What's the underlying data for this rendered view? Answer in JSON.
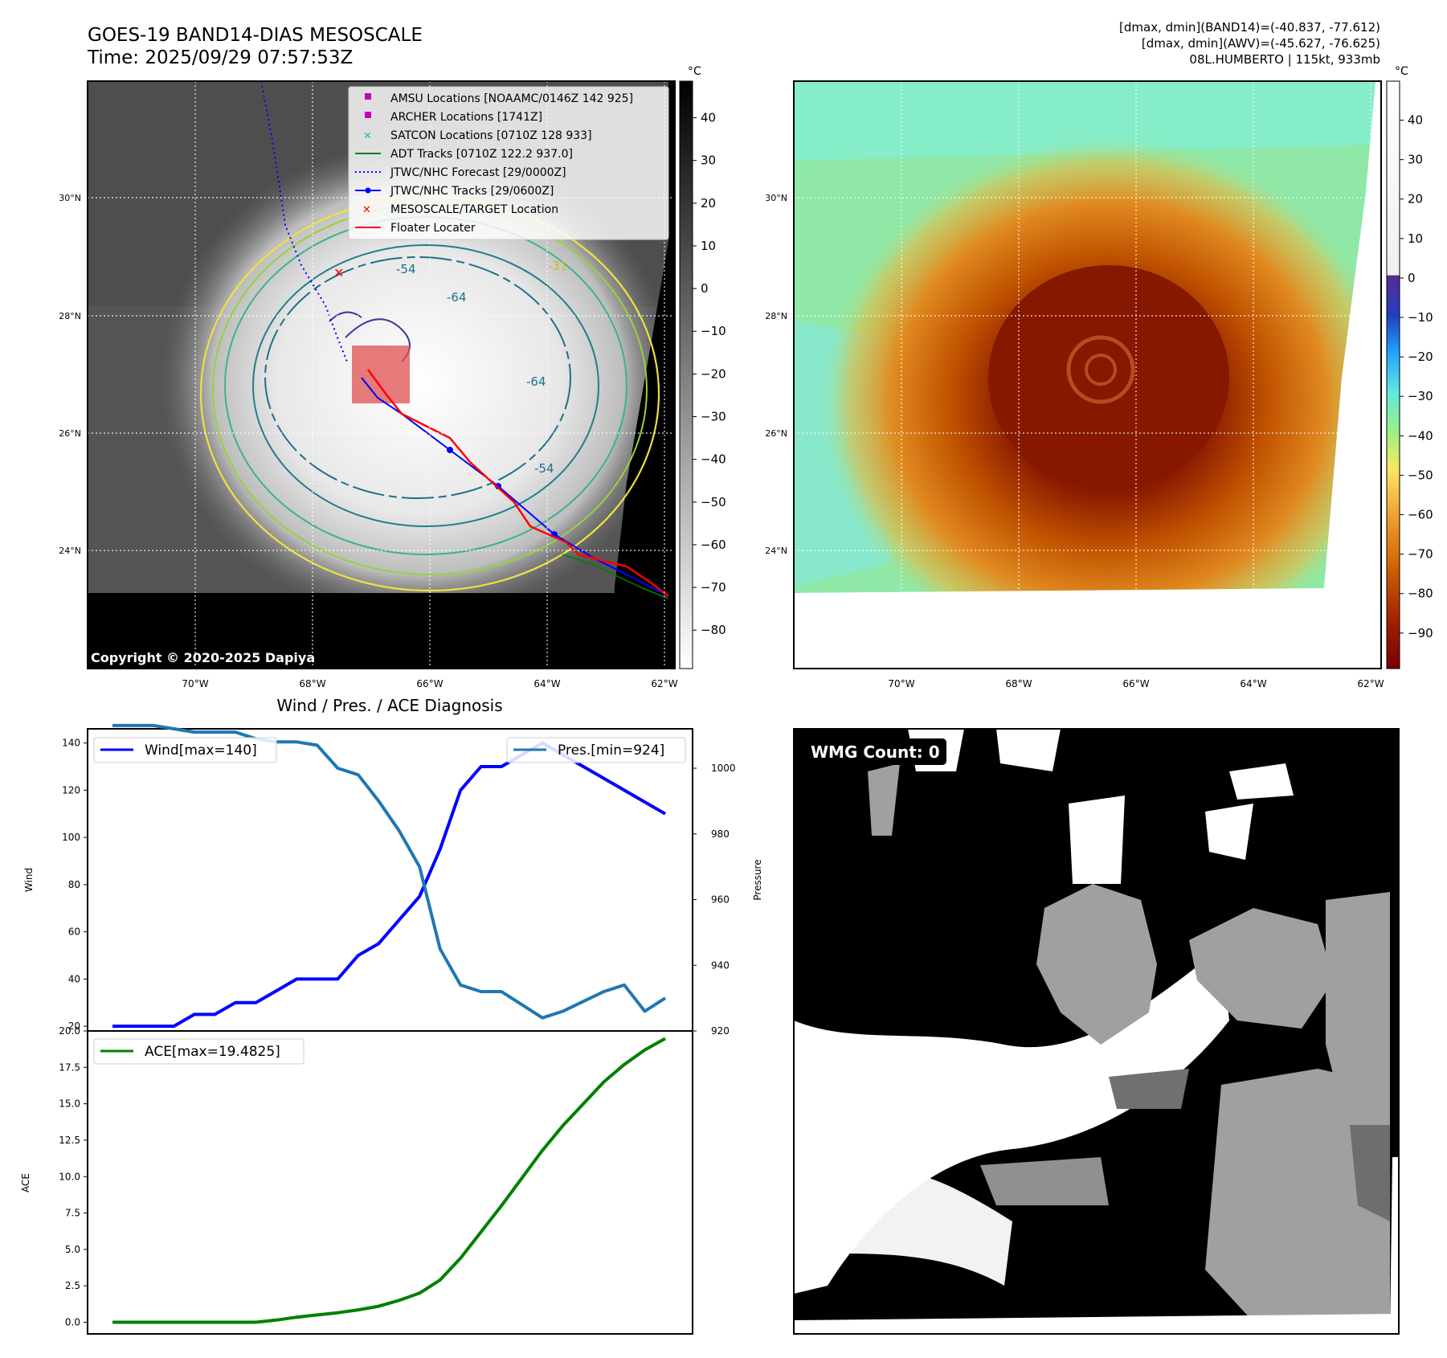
{
  "header": {
    "title_line1": "GOES-19 BAND14-DIAS MESOSCALE",
    "title_line2": "Time: 2025/09/29 07:57:53Z",
    "stats_line1": "[dmax, dmin](BAND14)=(-40.837, -77.612)",
    "stats_line2": "[dmax, dmin](AWV)=(-45.627, -76.625)",
    "stats_line3": "08L.HUMBERTO | 115kt, 933mb"
  },
  "map_axes": {
    "lon_ticks": [
      "70°W",
      "68°W",
      "66°W",
      "64°W",
      "62°W"
    ],
    "lat_ticks": [
      "30°N",
      "28°N",
      "26°N",
      "24°N"
    ]
  },
  "ir_panel": {
    "copyright": "Copyright © 2020-2025 Dapiya",
    "contour_labels": [
      "-54",
      "-64",
      "-64",
      "-54",
      "-31"
    ],
    "legend": [
      {
        "label": "AMSU Locations [NOAAMC/0146Z 142 925]",
        "color": "#c000c0",
        "marker": "square"
      },
      {
        "label": "ARCHER Locations [1741Z]",
        "color": "#c000c0",
        "marker": "square"
      },
      {
        "label": "SATCON Locations [0710Z 128 933]",
        "color": "#20b8c0",
        "marker": "x"
      },
      {
        "label": "ADT Tracks [0710Z 122.2 937.0]",
        "color": "#008000",
        "marker": "line"
      },
      {
        "label": "JTWC/NHC Forecast [29/0000Z]",
        "color": "#0000ff",
        "marker": "dotted"
      },
      {
        "label": "JTWC/NHC Tracks [29/0600Z]",
        "color": "#0000ff",
        "marker": "line-dot"
      },
      {
        "label": "MESOSCALE/TARGET Location",
        "color": "#ff0000",
        "marker": "x"
      },
      {
        "label": "Floater Locater",
        "color": "#ff0000",
        "marker": "line"
      }
    ],
    "colorbar": {
      "unit": "°C",
      "ticks": [
        "40",
        "30",
        "20",
        "10",
        "0",
        "−10",
        "−20",
        "−30",
        "−40",
        "−50",
        "−60",
        "−70",
        "−80"
      ]
    }
  },
  "wv_panel": {
    "colorbar": {
      "unit": "°C",
      "ticks": [
        "40",
        "30",
        "20",
        "10",
        "0",
        "−10",
        "−20",
        "−30",
        "−40",
        "−50",
        "−60",
        "−70",
        "−80",
        "−90"
      ]
    }
  },
  "wmg_panel": {
    "label": "WMG Count: 0"
  },
  "chart_data": [
    {
      "type": "line",
      "title": "Wind / Pres. / ACE Diagnosis",
      "xlabel": "",
      "ylabel": "Wind",
      "ylabel_right": "Pressure",
      "ylim": [
        18,
        146
      ],
      "ylim_right": [
        920,
        1012
      ],
      "yticks": [
        "20",
        "40",
        "60",
        "80",
        "100",
        "120",
        "140"
      ],
      "yticks_right": [
        "920",
        "940",
        "960",
        "980",
        "1000"
      ],
      "x": [
        0,
        1,
        2,
        3,
        4,
        5,
        6,
        7,
        8,
        9,
        10,
        11,
        12,
        13,
        14,
        15,
        16,
        17,
        18,
        19,
        20,
        21,
        22,
        23,
        24,
        25,
        26,
        27
      ],
      "series": [
        {
          "name": "Wind[max=140]",
          "color": "#0000ff",
          "axis": "left",
          "values": [
            20,
            20,
            20,
            20,
            25,
            25,
            30,
            30,
            35,
            40,
            40,
            40,
            50,
            55,
            65,
            75,
            95,
            120,
            130,
            130,
            135,
            140,
            135,
            130,
            125,
            120,
            115,
            110
          ]
        },
        {
          "name": "Pres.[min=924]",
          "color": "#1f77b4",
          "axis": "right",
          "values": [
            1013,
            1013,
            1013,
            1012,
            1011,
            1011,
            1011,
            1009,
            1008,
            1008,
            1007,
            1000,
            998,
            990,
            981,
            970,
            945,
            934,
            932,
            932,
            928,
            924,
            926,
            929,
            932,
            934,
            926,
            930
          ]
        }
      ]
    },
    {
      "type": "line",
      "title": "",
      "xlabel": "",
      "ylabel": "ACE",
      "ylim": [
        -0.8,
        20.0
      ],
      "yticks": [
        "0.0",
        "2.5",
        "5.0",
        "7.5",
        "10.0",
        "12.5",
        "15.0",
        "17.5",
        "20.0"
      ],
      "x": [
        0,
        1,
        2,
        3,
        4,
        5,
        6,
        7,
        8,
        9,
        10,
        11,
        12,
        13,
        14,
        15,
        16,
        17,
        18,
        19,
        20,
        21,
        22,
        23,
        24,
        25,
        26,
        27
      ],
      "series": [
        {
          "name": "ACE[max=19.4825]",
          "color": "#008000",
          "axis": "left",
          "values": [
            0,
            0,
            0,
            0,
            0,
            0,
            0,
            0,
            0.15,
            0.35,
            0.5,
            0.65,
            0.85,
            1.1,
            1.5,
            2.0,
            2.9,
            4.4,
            6.2,
            8.0,
            9.9,
            11.8,
            13.5,
            15.0,
            16.5,
            17.7,
            18.7,
            19.4825
          ]
        }
      ]
    }
  ]
}
